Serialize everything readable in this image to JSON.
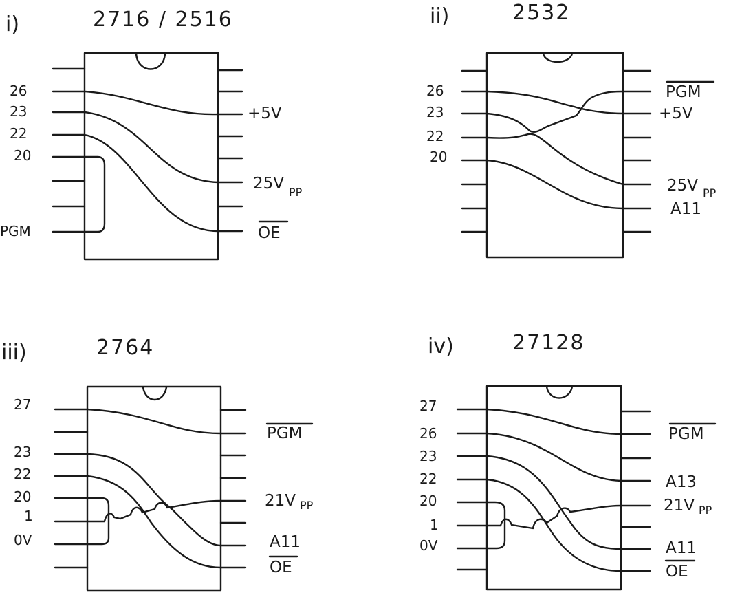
{
  "diagrams": [
    {
      "roman": "i)",
      "title": "2716 / 2516",
      "left_pins": [
        {
          "num": "26"
        },
        {
          "num": "23"
        },
        {
          "num": "22"
        },
        {
          "num": "20"
        },
        {
          "num": ""
        },
        {
          "num": ""
        },
        {
          "num": "PGM"
        }
      ],
      "right_labels": [
        {
          "text": "+5V",
          "sub": "",
          "overline": false
        },
        {
          "text": "25V",
          "sub": "PP",
          "overline": false
        },
        {
          "text": "OE",
          "sub": "",
          "overline": true
        }
      ]
    },
    {
      "roman": "ii)",
      "title": "2532",
      "left_pins": [
        {
          "num": "26"
        },
        {
          "num": "23"
        },
        {
          "num": "22"
        },
        {
          "num": "20"
        }
      ],
      "right_labels": [
        {
          "text": "PGM",
          "sub": "",
          "overline": true
        },
        {
          "text": "+5V",
          "sub": "",
          "overline": false
        },
        {
          "text": "25V",
          "sub": "PP",
          "overline": false
        },
        {
          "text": "A11",
          "sub": "",
          "overline": false
        }
      ]
    },
    {
      "roman": "iii)",
      "title": "2764",
      "left_pins": [
        {
          "num": "27"
        },
        {
          "num": "23"
        },
        {
          "num": "22"
        },
        {
          "num": "20"
        },
        {
          "num": "1"
        },
        {
          "num": "0V"
        }
      ],
      "right_labels": [
        {
          "text": "PGM",
          "sub": "",
          "overline": true
        },
        {
          "text": "21V",
          "sub": "PP",
          "overline": false
        },
        {
          "text": "A11",
          "sub": "",
          "overline": false
        },
        {
          "text": "OE",
          "sub": "",
          "overline": true
        }
      ]
    },
    {
      "roman": "iv)",
      "title": "27128",
      "left_pins": [
        {
          "num": "27"
        },
        {
          "num": "26"
        },
        {
          "num": "23"
        },
        {
          "num": "22"
        },
        {
          "num": "20"
        },
        {
          "num": "1"
        },
        {
          "num": "0V"
        }
      ],
      "right_labels": [
        {
          "text": "PGM",
          "sub": "",
          "overline": true
        },
        {
          "text": "A13",
          "sub": "",
          "overline": false
        },
        {
          "text": "21V",
          "sub": "PP",
          "overline": false
        },
        {
          "text": "A11",
          "sub": "",
          "overline": false
        },
        {
          "text": "OE",
          "sub": "",
          "overline": true
        }
      ]
    }
  ]
}
